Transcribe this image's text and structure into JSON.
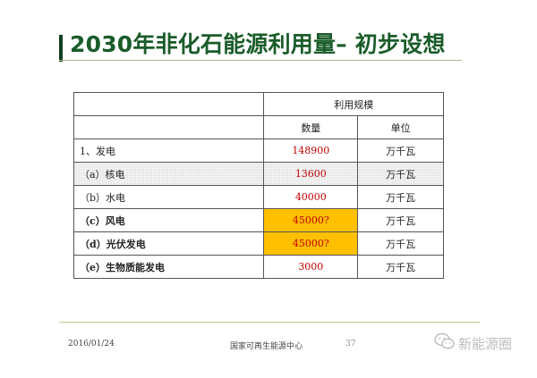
{
  "slide": {
    "title": "2030年非化石能源利用量– 初步设想"
  },
  "table": {
    "group_header": "利用规模",
    "col_quantity": "数量",
    "col_unit": "单位",
    "rows": [
      {
        "label": "1、发电",
        "quantity": "148900",
        "unit": "万千瓦"
      },
      {
        "label": "（a）核电",
        "quantity": "13600",
        "unit": "万千瓦"
      },
      {
        "label": "（b）水电",
        "quantity": "40000",
        "unit": "万千瓦"
      },
      {
        "label": "（c）风电",
        "quantity": "45000?",
        "unit": "万千瓦"
      },
      {
        "label": "（d）光伏发电",
        "quantity": "45000?",
        "unit": "万千瓦"
      },
      {
        "label": "（e）生物质能发电",
        "quantity": "3000",
        "unit": "万千瓦"
      }
    ]
  },
  "footer": {
    "date": "2016/01/24",
    "organization": "国家可再生能源中心",
    "page": "37"
  },
  "watermark": {
    "text": "新能源圈"
  },
  "colors": {
    "title": "#1a5c2a",
    "accent_bar": "#0f3f22",
    "quantity_text": "#c00000",
    "highlight": "#ffc000"
  }
}
